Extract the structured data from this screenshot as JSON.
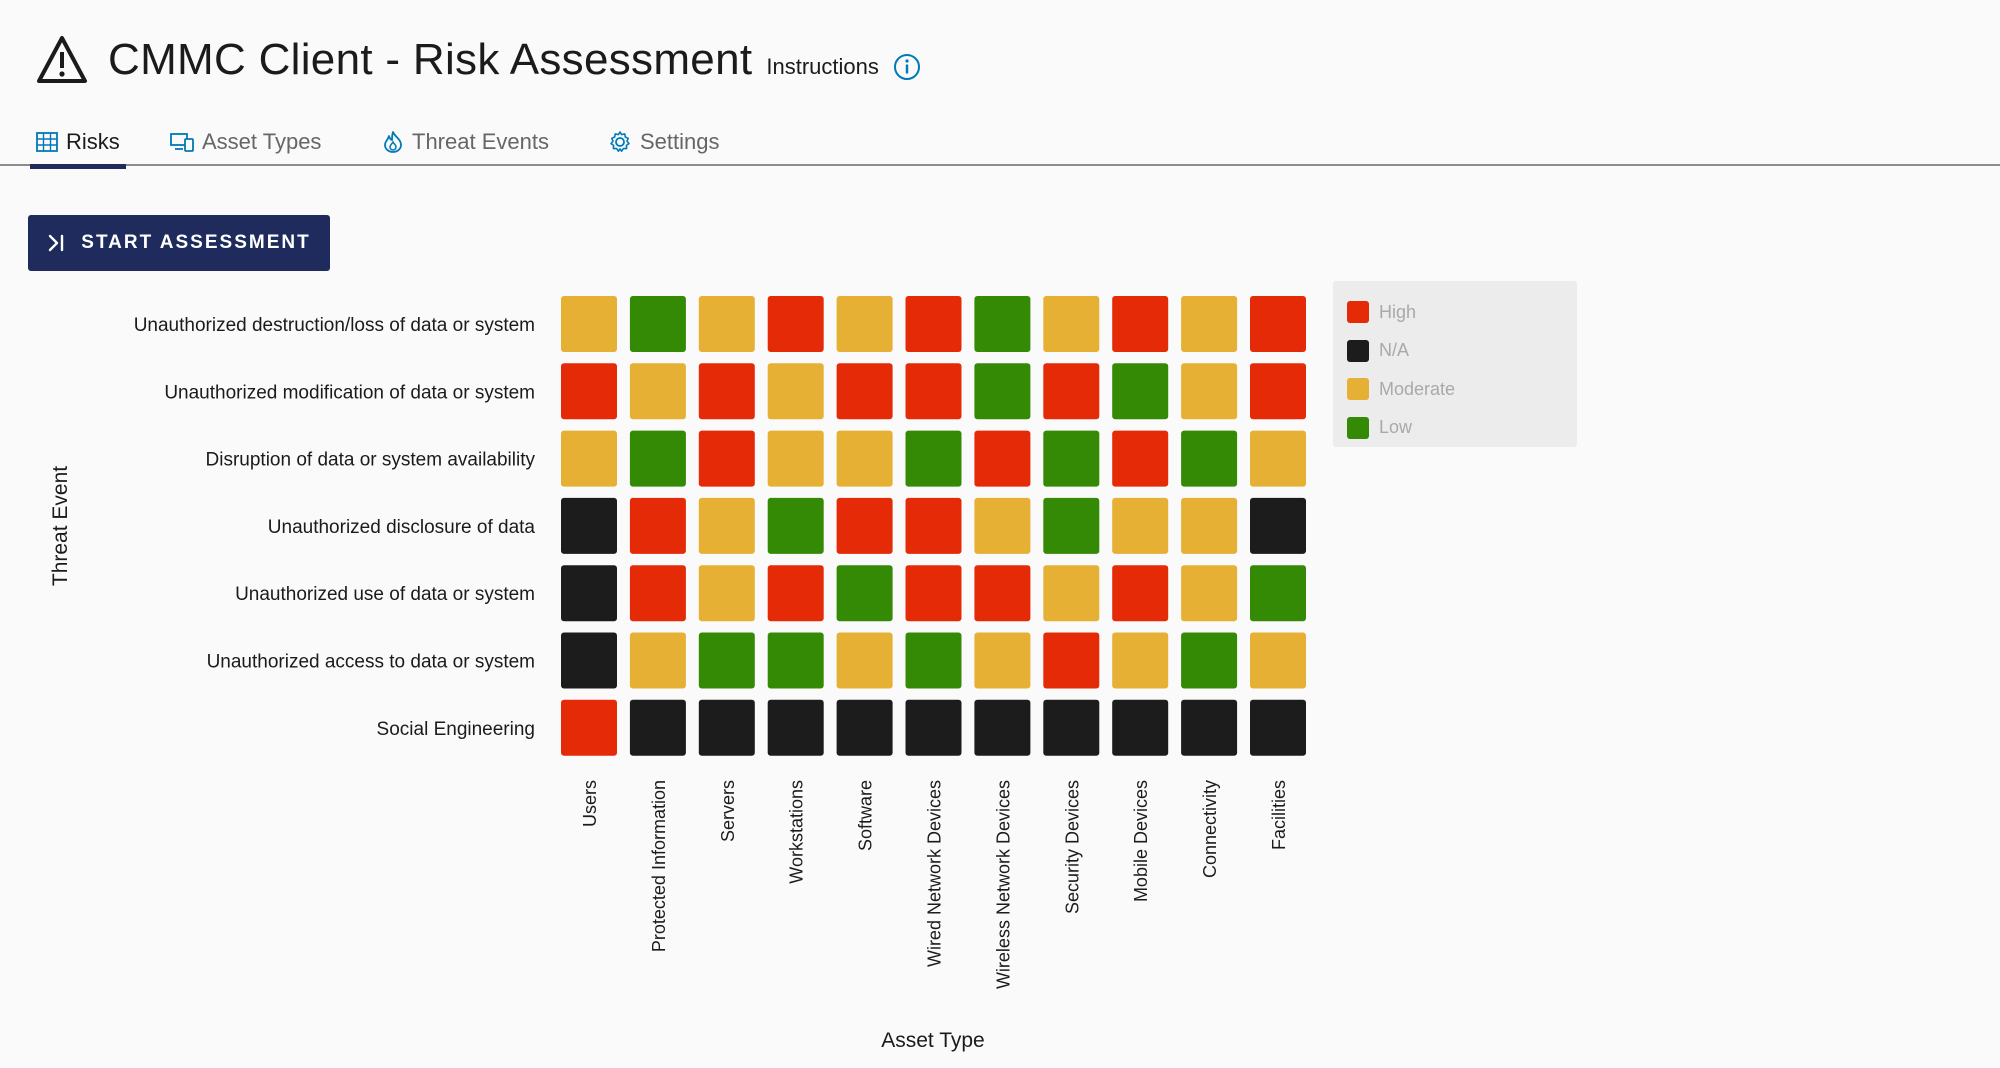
{
  "header": {
    "title": "CMMC Client - Risk Assessment",
    "instructions": "Instructions"
  },
  "tabs": [
    {
      "label": "Risks",
      "icon": "grid-icon",
      "active": true
    },
    {
      "label": "Asset Types",
      "icon": "devices-icon",
      "active": false
    },
    {
      "label": "Threat Events",
      "icon": "fire-icon",
      "active": false
    },
    {
      "label": "Settings",
      "icon": "gear-icon",
      "active": false
    }
  ],
  "actions": {
    "start_assessment": "START ASSESSMENT"
  },
  "legend": [
    {
      "label": "High",
      "color": "#e52a08"
    },
    {
      "label": "N/A",
      "color": "#1c1c1c"
    },
    {
      "label": "Moderate",
      "color": "#e6b035"
    },
    {
      "label": "Low",
      "color": "#348a04"
    }
  ],
  "chart_data": {
    "type": "heatmap",
    "ylabel": "Threat Event",
    "xlabel": "Asset Type",
    "rows": [
      "Unauthorized destruction/loss of data or system",
      "Unauthorized modification of data or system",
      "Disruption of data or system availability",
      "Unauthorized disclosure of data",
      "Unauthorized use of data or system",
      "Unauthorized access to data or system",
      "Social Engineering"
    ],
    "columns": [
      "Users",
      "Protected Information",
      "Servers",
      "Workstations",
      "Software",
      "Wired Network Devices",
      "Wireless Network Devices",
      "Security Devices",
      "Mobile Devices",
      "Connectivity",
      "Facilities"
    ],
    "values": [
      [
        "Moderate",
        "Low",
        "Moderate",
        "High",
        "Moderate",
        "High",
        "Low",
        "Moderate",
        "High",
        "Moderate",
        "High"
      ],
      [
        "High",
        "Moderate",
        "High",
        "Moderate",
        "High",
        "High",
        "Low",
        "High",
        "Low",
        "Moderate",
        "High"
      ],
      [
        "Moderate",
        "Low",
        "High",
        "Moderate",
        "Moderate",
        "Low",
        "High",
        "Low",
        "High",
        "Low",
        "Moderate"
      ],
      [
        "N/A",
        "High",
        "Moderate",
        "Low",
        "High",
        "High",
        "Moderate",
        "Low",
        "Moderate",
        "Moderate",
        "N/A"
      ],
      [
        "N/A",
        "High",
        "Moderate",
        "High",
        "Low",
        "High",
        "High",
        "Moderate",
        "High",
        "Moderate",
        "Low"
      ],
      [
        "N/A",
        "Moderate",
        "Low",
        "Low",
        "Moderate",
        "Low",
        "Moderate",
        "High",
        "Moderate",
        "Low",
        "Moderate"
      ],
      [
        "High",
        "N/A",
        "N/A",
        "N/A",
        "N/A",
        "N/A",
        "N/A",
        "N/A",
        "N/A",
        "N/A",
        "N/A"
      ]
    ],
    "colors": {
      "High": "#e52a08",
      "N/A": "#1c1c1c",
      "Moderate": "#e6b035",
      "Low": "#348a04"
    }
  }
}
